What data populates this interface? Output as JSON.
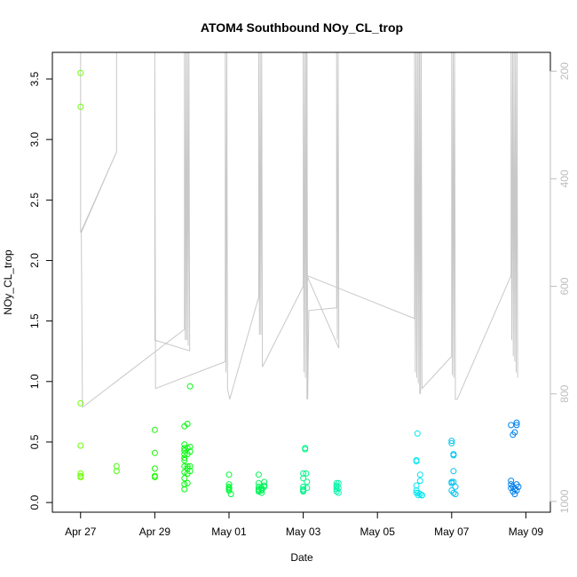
{
  "chart_data": {
    "type": "scatter",
    "title": "ATOM4 Southbound NOy_CL_trop",
    "xlabel": "Date",
    "ylabel": "NOy_CL_trop",
    "ylim": [
      -0.08,
      3.72
    ],
    "y2lim": [
      1020,
      165
    ],
    "y2_reversed": true,
    "grid": false,
    "legend": "none",
    "x_start": "2018-04-26",
    "xlim": [
      0.24,
      13.66
    ],
    "x_ticks": [
      "Apr 27",
      "Apr 29",
      "May 01",
      "May 03",
      "May 05",
      "May 07",
      "May 09"
    ],
    "y_ticks": [
      "0.0",
      "0.5",
      "1.0",
      "1.5",
      "2.0",
      "2.5",
      "3.0",
      "3.5"
    ],
    "y2_ticks": [
      "200",
      "400",
      "600",
      "800",
      "1000"
    ],
    "colors": {
      "secondary_trace": "#c8c8c8",
      "axis": "#000000",
      "right_axis": "#bdbdbd",
      "point_palette": [
        "#7cff00",
        "#3dff00",
        "#00ff33",
        "#00ffcc",
        "#00c8ff",
        "#0096ff"
      ]
    },
    "points": [
      [
        1.0,
        3.55
      ],
      [
        1.0,
        3.27
      ],
      [
        1.0,
        0.82
      ],
      [
        1.0,
        0.47
      ],
      [
        1.0,
        0.24
      ],
      [
        1.0,
        0.22
      ],
      [
        1.0,
        0.21
      ],
      [
        1.97,
        0.3
      ],
      [
        1.97,
        0.26
      ],
      [
        3.0,
        0.6
      ],
      [
        3.0,
        0.41
      ],
      [
        3.0,
        0.28
      ],
      [
        3.0,
        0.22
      ],
      [
        3.0,
        0.21
      ],
      [
        3.8,
        0.63
      ],
      [
        3.8,
        0.48
      ],
      [
        3.8,
        0.45
      ],
      [
        3.8,
        0.43
      ],
      [
        3.8,
        0.4
      ],
      [
        3.8,
        0.37
      ],
      [
        3.8,
        0.35
      ],
      [
        3.8,
        0.3
      ],
      [
        3.8,
        0.25
      ],
      [
        3.8,
        0.2
      ],
      [
        3.8,
        0.15
      ],
      [
        3.8,
        0.11
      ],
      [
        3.88,
        0.65
      ],
      [
        3.88,
        0.45
      ],
      [
        3.88,
        0.4
      ],
      [
        3.88,
        0.3
      ],
      [
        3.88,
        0.28
      ],
      [
        3.88,
        0.24
      ],
      [
        3.88,
        0.16
      ],
      [
        3.95,
        0.96
      ],
      [
        3.95,
        0.46
      ],
      [
        3.95,
        0.42
      ],
      [
        3.95,
        0.3
      ],
      [
        3.95,
        0.26
      ],
      [
        5.0,
        0.23
      ],
      [
        5.0,
        0.15
      ],
      [
        5.0,
        0.13
      ],
      [
        5.0,
        0.12
      ],
      [
        5.0,
        0.11
      ],
      [
        5.0,
        0.1
      ],
      [
        5.05,
        0.07
      ],
      [
        5.8,
        0.23
      ],
      [
        5.8,
        0.16
      ],
      [
        5.8,
        0.13
      ],
      [
        5.8,
        0.11
      ],
      [
        5.8,
        0.1
      ],
      [
        5.8,
        0.09
      ],
      [
        5.88,
        0.12
      ],
      [
        5.88,
        0.11
      ],
      [
        5.88,
        0.1
      ],
      [
        5.88,
        0.08
      ],
      [
        5.95,
        0.17
      ],
      [
        5.95,
        0.14
      ],
      [
        5.95,
        0.13
      ],
      [
        7.0,
        0.24
      ],
      [
        7.0,
        0.2
      ],
      [
        7.0,
        0.13
      ],
      [
        7.0,
        0.11
      ],
      [
        7.0,
        0.1
      ],
      [
        7.0,
        0.09
      ],
      [
        7.05,
        0.45
      ],
      [
        7.05,
        0.44
      ],
      [
        7.08,
        0.24
      ],
      [
        7.1,
        0.17
      ],
      [
        7.1,
        0.12
      ],
      [
        7.9,
        0.16
      ],
      [
        7.9,
        0.14
      ],
      [
        7.9,
        0.13
      ],
      [
        7.9,
        0.11
      ],
      [
        7.9,
        0.09
      ],
      [
        7.95,
        0.16
      ],
      [
        7.95,
        0.12
      ],
      [
        7.95,
        0.08
      ],
      [
        10.05,
        0.35
      ],
      [
        10.05,
        0.34
      ],
      [
        10.05,
        0.14
      ],
      [
        10.05,
        0.1
      ],
      [
        10.05,
        0.08
      ],
      [
        10.08,
        0.57
      ],
      [
        10.1,
        0.08
      ],
      [
        10.1,
        0.06
      ],
      [
        10.15,
        0.23
      ],
      [
        10.15,
        0.18
      ],
      [
        10.15,
        0.07
      ],
      [
        10.2,
        0.06
      ],
      [
        10.2,
        0.06
      ],
      [
        11.0,
        0.51
      ],
      [
        11.0,
        0.49
      ],
      [
        11.0,
        0.17
      ],
      [
        11.0,
        0.16
      ],
      [
        11.0,
        0.1
      ],
      [
        11.05,
        0.4
      ],
      [
        11.05,
        0.39
      ],
      [
        11.05,
        0.26
      ],
      [
        11.05,
        0.17
      ],
      [
        11.05,
        0.08
      ],
      [
        11.1,
        0.13
      ],
      [
        11.1,
        0.07
      ],
      [
        12.6,
        0.64
      ],
      [
        12.6,
        0.18
      ],
      [
        12.6,
        0.15
      ],
      [
        12.6,
        0.12
      ],
      [
        12.65,
        0.56
      ],
      [
        12.65,
        0.13
      ],
      [
        12.65,
        0.09
      ],
      [
        12.7,
        0.58
      ],
      [
        12.7,
        0.11
      ],
      [
        12.7,
        0.07
      ],
      [
        12.75,
        0.66
      ],
      [
        12.75,
        0.64
      ],
      [
        12.75,
        0.15
      ],
      [
        12.75,
        0.1
      ],
      [
        12.8,
        0.13
      ]
    ],
    "pressure_trace": [
      [
        1.0,
        165
      ],
      [
        1.0,
        500
      ],
      [
        1.97,
        350
      ],
      [
        1.97,
        165
      ],
      [
        1.97,
        350
      ],
      [
        1.02,
        500
      ],
      [
        1.05,
        825
      ],
      [
        3.8,
        680
      ],
      [
        3.8,
        165
      ],
      [
        3.82,
        700
      ],
      [
        3.84,
        165
      ],
      [
        3.86,
        700
      ],
      [
        3.88,
        165
      ],
      [
        3.9,
        710
      ],
      [
        3.92,
        165
      ],
      [
        3.94,
        720
      ],
      [
        3.0,
        700
      ],
      [
        3.0,
        165
      ],
      [
        3.02,
        790
      ],
      [
        4.9,
        740
      ],
      [
        4.9,
        165
      ],
      [
        4.92,
        760
      ],
      [
        4.94,
        165
      ],
      [
        4.96,
        790
      ],
      [
        5.02,
        810
      ],
      [
        5.8,
        620
      ],
      [
        5.8,
        165
      ],
      [
        5.82,
        690
      ],
      [
        5.84,
        165
      ],
      [
        5.86,
        690
      ],
      [
        5.88,
        165
      ],
      [
        5.9,
        750
      ],
      [
        5.9,
        750
      ],
      [
        7.0,
        600
      ],
      [
        7.0,
        165
      ],
      [
        7.02,
        760
      ],
      [
        7.04,
        165
      ],
      [
        7.06,
        770
      ],
      [
        7.08,
        165
      ],
      [
        7.1,
        810
      ],
      [
        7.1,
        165
      ],
      [
        7.12,
        810
      ],
      [
        7.15,
        645
      ],
      [
        7.9,
        640
      ],
      [
        7.9,
        165
      ],
      [
        7.92,
        700
      ],
      [
        7.94,
        165
      ],
      [
        7.96,
        715
      ],
      [
        7.1,
        580
      ],
      [
        10.0,
        660
      ],
      [
        10.0,
        165
      ],
      [
        10.02,
        760
      ],
      [
        10.04,
        165
      ],
      [
        10.06,
        770
      ],
      [
        10.08,
        165
      ],
      [
        10.1,
        780
      ],
      [
        10.12,
        165
      ],
      [
        10.14,
        800
      ],
      [
        10.14,
        165
      ],
      [
        10.16,
        800
      ],
      [
        10.18,
        165
      ],
      [
        10.2,
        790
      ],
      [
        10.2,
        790
      ],
      [
        11.0,
        730
      ],
      [
        11.0,
        165
      ],
      [
        11.02,
        765
      ],
      [
        11.04,
        165
      ],
      [
        11.06,
        770
      ],
      [
        11.08,
        165
      ],
      [
        11.1,
        810
      ],
      [
        11.15,
        810
      ],
      [
        12.6,
        580
      ],
      [
        12.6,
        165
      ],
      [
        12.62,
        700
      ],
      [
        12.64,
        165
      ],
      [
        12.66,
        730
      ],
      [
        12.68,
        165
      ],
      [
        12.7,
        740
      ],
      [
        12.72,
        165
      ],
      [
        12.74,
        760
      ],
      [
        12.76,
        165
      ],
      [
        12.78,
        770
      ]
    ]
  }
}
